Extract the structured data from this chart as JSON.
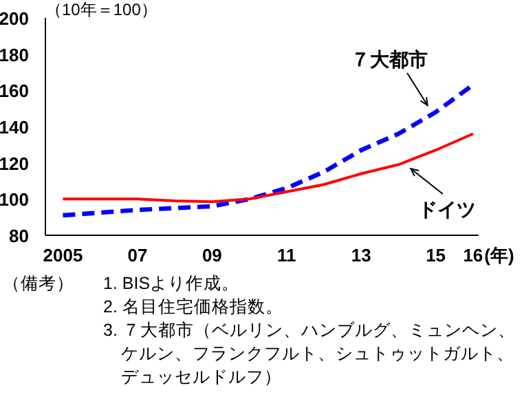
{
  "chart_data": {
    "type": "line",
    "ylabel": "（10年＝100）",
    "xlabel": "(年)",
    "x": [
      2005,
      2006,
      2007,
      2008,
      2009,
      2010,
      2011,
      2012,
      2013,
      2014,
      2015,
      2016
    ],
    "series": [
      {
        "name": "７大都市",
        "color": "#0000ff",
        "line_style": "dashed",
        "values": [
          91,
          92.5,
          94,
          95,
          96,
          100,
          106,
          115,
          127,
          136,
          148,
          163
        ]
      },
      {
        "name": "ドイツ",
        "color": "#ff0000",
        "line_style": "solid",
        "values": [
          100,
          100,
          100,
          99,
          98.5,
          100,
          104,
          108,
          114,
          119,
          127,
          136
        ]
      }
    ],
    "xlim": [
      2004.53,
      2016.15
    ],
    "ylim": [
      80,
      200
    ],
    "xticks": [
      2005,
      {
        "value": 2007,
        "label": "07"
      },
      {
        "value": 2009,
        "label": "09"
      },
      {
        "value": 2011,
        "label": "11"
      },
      {
        "value": 2013,
        "label": "13"
      },
      {
        "value": 2015,
        "label": "15"
      },
      {
        "value": 2016,
        "label": "16"
      }
    ],
    "yticks": [
      80,
      100,
      120,
      140,
      160,
      180,
      200
    ],
    "annotations": [
      "（備考）",
      "1. BISより作成。",
      "2. 名目住宅価格指数。",
      "3. ７大都市（ベルリン、ハンブルグ、ミュンヘン、ケルン、フランクフルト、シュトゥットガルト、デュッセルドルフ）"
    ]
  }
}
